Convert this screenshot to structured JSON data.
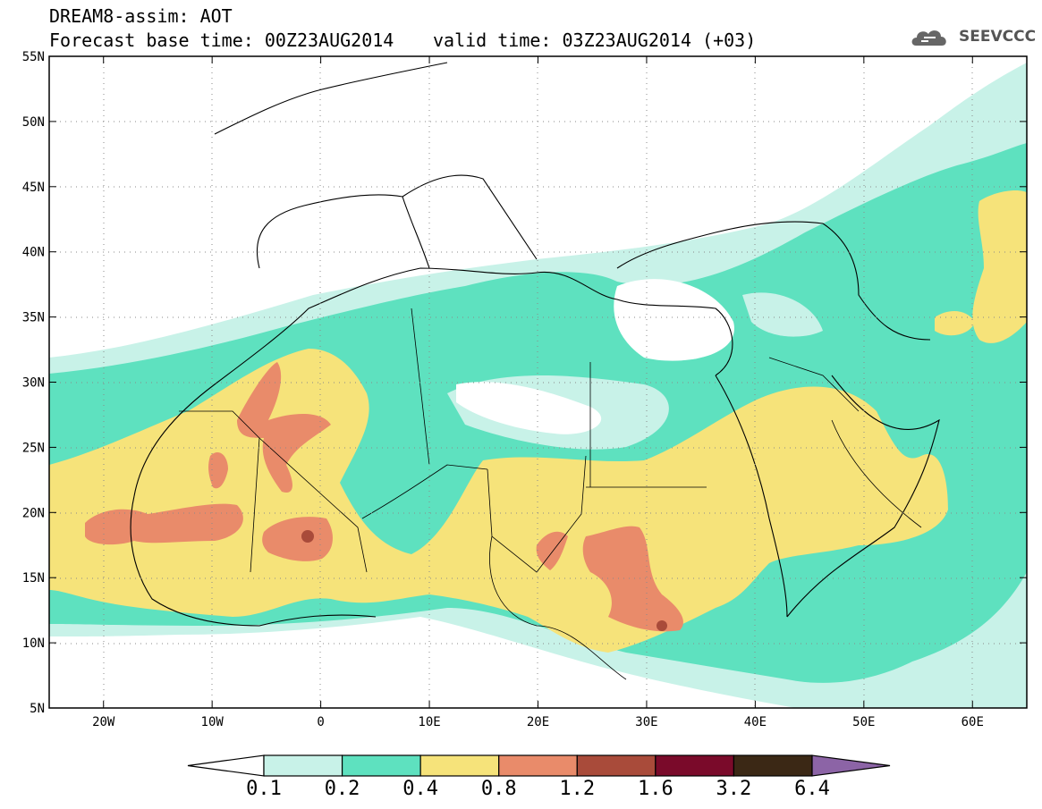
{
  "title": {
    "line1": "DREAM8-assim: AOT",
    "base": "Forecast base time: 00Z23AUG2014",
    "valid": "valid time: 03Z23AUG2014 (+03)"
  },
  "logo": {
    "text": "SEEVCCC",
    "icon": "cloud-icon"
  },
  "map": {
    "lat_labels": [
      "55N",
      "50N",
      "45N",
      "40N",
      "35N",
      "30N",
      "25N",
      "20N",
      "15N",
      "10N",
      "5N"
    ],
    "lon_labels": [
      "20W",
      "10W",
      "0",
      "10E",
      "20E",
      "30E",
      "40E",
      "50E",
      "60E"
    ],
    "lat_range": [
      5,
      55
    ],
    "lon_range": [
      -25,
      65
    ],
    "grid": "dotted"
  },
  "colorbar": {
    "labels": [
      "0.1",
      "0.2",
      "0.4",
      "0.8",
      "1.2",
      "1.6",
      "3.2",
      "6.4"
    ],
    "colors": [
      "#ffffff",
      "#c8f2e8",
      "#5ee1bf",
      "#f6e37a",
      "#e98b6a",
      "#a94b3a",
      "#7a0a2a",
      "#3b2815",
      "#8c64a6"
    ]
  }
}
